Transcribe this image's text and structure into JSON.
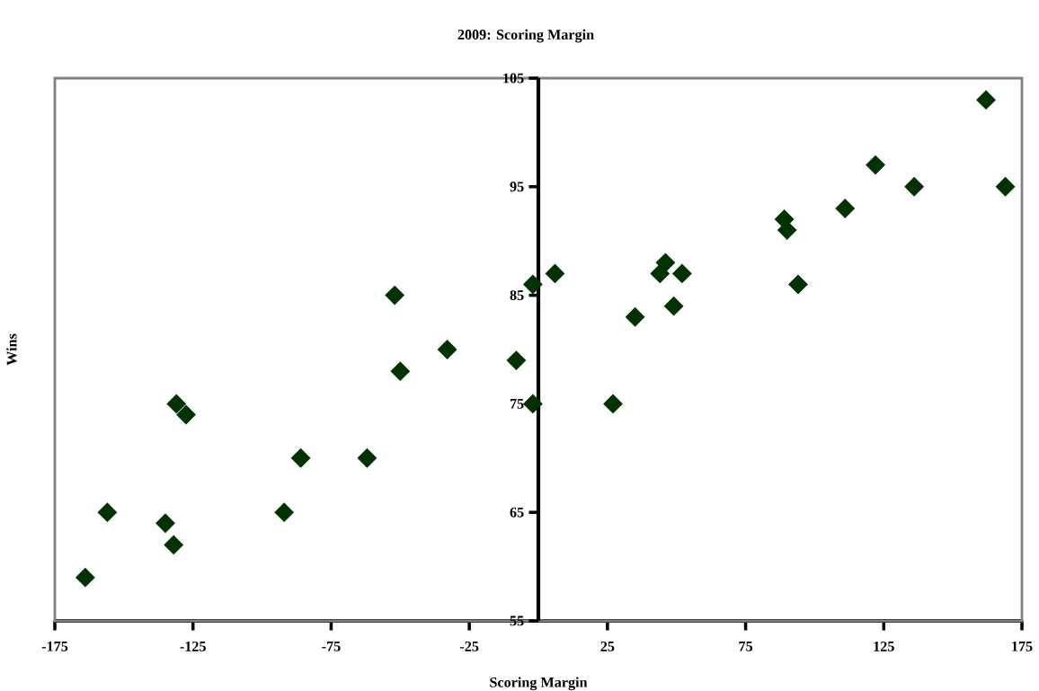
{
  "chart_data": {
    "type": "scatter",
    "title": "2009: Scoring Margin",
    "xlabel": "Scoring Margin",
    "ylabel": "Wins",
    "x": [
      -164,
      -156,
      -135,
      -132,
      -131,
      -127.5,
      -92,
      -86,
      -62,
      -52,
      -50,
      -33,
      -8,
      -2,
      -2,
      6,
      27,
      35,
      44,
      46,
      49,
      52,
      89,
      90,
      94,
      111,
      122,
      136,
      162,
      169
    ],
    "series": [
      {
        "color": "#003300",
        "values": [
          59,
          65,
          64,
          62,
          75,
          74,
          65,
          70,
          70,
          85,
          78,
          80,
          79,
          75,
          86,
          87,
          75,
          83,
          87,
          88,
          84,
          87,
          92,
          91,
          86,
          93,
          97,
          95,
          103,
          95
        ]
      }
    ],
    "xlim": [
      -175,
      175
    ],
    "ylim": [
      55,
      105
    ],
    "xticks": [
      -175,
      -125,
      -75,
      -25,
      25,
      75,
      125,
      175
    ],
    "yticks": [
      55,
      65,
      75,
      85,
      95,
      105
    ],
    "marker": "diamond",
    "grid": false
  }
}
